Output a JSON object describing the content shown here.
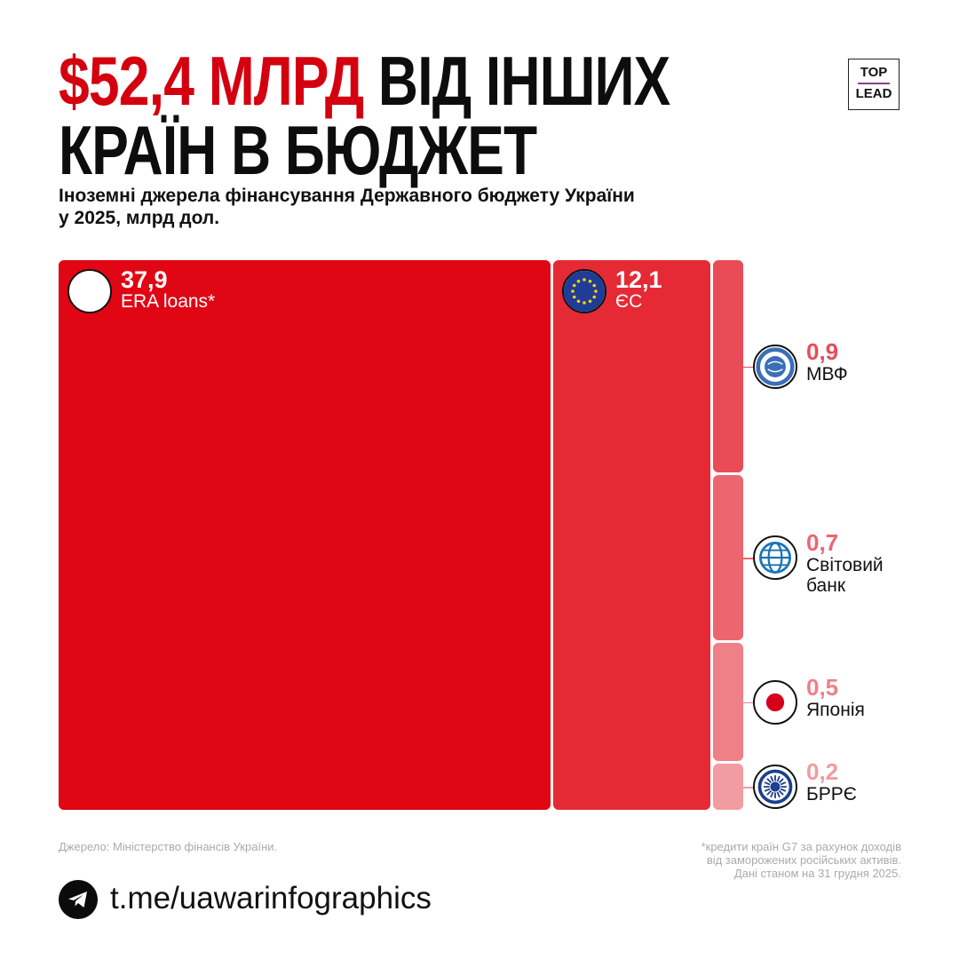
{
  "header": {
    "title_accent": "$52,4 МЛРД",
    "title_line1_rest": " ВІД ІНШИХ",
    "title_line2": "КРАЇН В БЮДЖЕТ",
    "subtitle_line1": "Іноземні джерела фінансування Державного бюджету України",
    "subtitle_line2": "у 2025, млрд дол.",
    "logo_top": "TOP",
    "logo_bottom": "LEAD"
  },
  "chart_data": {
    "type": "treemap",
    "items": [
      {
        "label": "ERA loans*",
        "value_text": "37,9",
        "value": 37.9,
        "color": "#e10613",
        "icon": "blank-circle"
      },
      {
        "label": "ЄС",
        "value_text": "12,1",
        "value": 12.1,
        "color": "#e52a35",
        "icon": "eu-flag-icon"
      },
      {
        "label": "МВФ",
        "value_text": "0,9",
        "value": 0.9,
        "color": "#e94b57",
        "icon": "imf-logo-icon"
      },
      {
        "label": "Світовий банк",
        "label_lines": [
          "Світовий",
          "банк"
        ],
        "value_text": "0,7",
        "value": 0.7,
        "color": "#ec6670",
        "icon": "world-bank-icon"
      },
      {
        "label": "Японія",
        "value_text": "0,5",
        "value": 0.5,
        "color": "#ef8088",
        "icon": "japan-flag-icon"
      },
      {
        "label": "БРРЄ",
        "value_text": "0,2",
        "value": 0.2,
        "color": "#f29ba1",
        "icon": "ebrd-logo-icon"
      }
    ]
  },
  "footer": {
    "source": "Джерело: Міністерство фінансів України.",
    "note_lines": [
      "*кредити країн G7 за рахунок доходів",
      "від заморожених російських активів.",
      "Дані станом на 31 грудня 2025."
    ],
    "telegram_link": "t.me/uawarinfographics",
    "telegram_icon": "telegram-icon"
  }
}
